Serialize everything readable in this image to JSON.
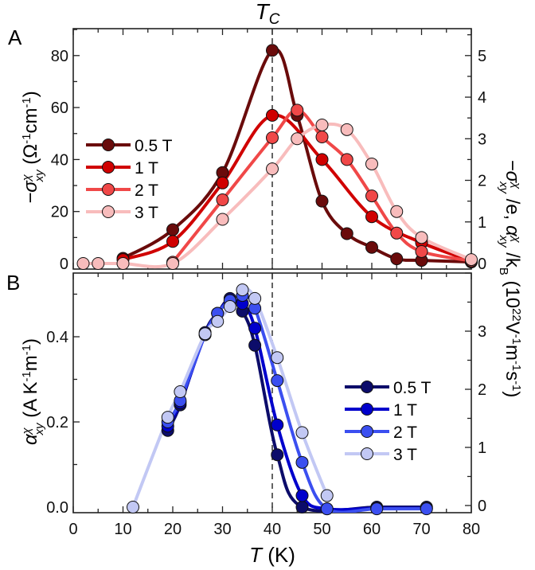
{
  "chart_data": [
    {
      "panel": "A",
      "type": "line",
      "panel_label": "A",
      "annotation": {
        "text": "T",
        "sub": "C",
        "x_value": 40
      },
      "xlabel": "T (K)",
      "xlim": [
        0,
        80
      ],
      "xticks": [
        0,
        10,
        20,
        30,
        40,
        50,
        60,
        70,
        80
      ],
      "ylim": [
        -2.1,
        90.3
      ],
      "yticks": [
        0,
        20,
        40,
        60,
        80
      ],
      "ylabel_segments": [
        {
          "t": "−σ",
          "s": "i"
        },
        {
          "t": "χ",
          "s": "sup i"
        },
        {
          "t": "xy",
          "s": "sub i stack"
        },
        {
          "t": " (Ω",
          "s": ""
        },
        {
          "t": "-1",
          "s": "sup"
        },
        {
          "t": "cm",
          "s": ""
        },
        {
          "t": "-1",
          "s": "sup"
        },
        {
          "t": ")",
          "s": ""
        }
      ],
      "right_axis": {
        "scale_factor": 16,
        "ticks": [
          0,
          1,
          2,
          3,
          4,
          5
        ]
      },
      "legend_position": "center-left",
      "series": [
        {
          "name": "0.5 T",
          "color": "#6a0b0b",
          "T": [
            10,
            20,
            30,
            40,
            45,
            50,
            55,
            60,
            65,
            70,
            80
          ],
          "values": [
            2,
            13,
            35,
            82,
            57,
            24,
            11.5,
            6.2,
            1.8,
            1.2,
            0.6
          ]
        },
        {
          "name": "1 T",
          "color": "#d00000",
          "T": [
            10,
            20,
            30,
            40,
            50,
            60,
            70,
            80
          ],
          "values": [
            1.5,
            8.5,
            31,
            57,
            40,
            18,
            8,
            1
          ]
        },
        {
          "name": "2 T",
          "color": "#f04848",
          "T": [
            20,
            30,
            40,
            45,
            50,
            55,
            60,
            65,
            70,
            80
          ],
          "values": [
            0.5,
            24.5,
            48.4,
            59,
            48.7,
            40,
            26,
            11.7,
            4.6,
            1
          ]
        },
        {
          "name": "3 T",
          "color": "#f8bcbc",
          "T": [
            2,
            5,
            10,
            20,
            30,
            40,
            45,
            50,
            55,
            60,
            65,
            70,
            80
          ],
          "values": [
            0,
            0,
            0,
            0,
            17,
            36.4,
            48,
            53.3,
            51.5,
            38.3,
            20,
            10,
            1.5
          ]
        }
      ]
    },
    {
      "panel": "B",
      "type": "line",
      "panel_label": "B",
      "xlabel": "T (K)",
      "xlim": [
        0,
        80
      ],
      "xticks": [
        0,
        10,
        20,
        30,
        40,
        50,
        60,
        70,
        80
      ],
      "ylim": [
        -0.013,
        0.55
      ],
      "yticks": [
        0.0,
        0.2,
        0.4
      ],
      "ytick_labels": [
        "0.0",
        "0.2",
        "0.4"
      ],
      "ylabel_segments": [
        {
          "t": "α",
          "s": "i"
        },
        {
          "t": "χ",
          "s": "sup i"
        },
        {
          "t": "xy",
          "s": "sub i stack"
        },
        {
          "t": " (A K",
          "s": ""
        },
        {
          "t": "-1",
          "s": "sup"
        },
        {
          "t": "m",
          "s": ""
        },
        {
          "t": "-1",
          "s": "sup"
        },
        {
          "t": ")",
          "s": ""
        }
      ],
      "right_axis": {
        "scale_factor": 0.1364,
        "ticks": [
          0,
          1,
          2,
          3
        ]
      },
      "legend_position": "center-right",
      "series": [
        {
          "name": "0.5 T",
          "color": "#0c0c6a",
          "T": [
            19,
            21.5,
            26.5,
            29,
            31.5,
            34,
            36.5,
            41,
            46,
            61,
            71
          ],
          "values": [
            0.18,
            0.24,
            0.41,
            0.455,
            0.49,
            0.46,
            0.38,
            0.123,
            0,
            0,
            0
          ]
        },
        {
          "name": "1 T",
          "color": "#0000cc",
          "T": [
            19,
            21.5,
            26.5,
            29,
            31.5,
            34,
            36.5,
            41,
            46,
            51,
            61,
            71
          ],
          "values": [
            0.19,
            0.245,
            0.405,
            0.455,
            0.485,
            0.478,
            0.42,
            0.193,
            0.027,
            -0.004,
            -0.003,
            -0.003
          ]
        },
        {
          "name": "2 T",
          "color": "#3b4ff0",
          "T": [
            19,
            21.5,
            26.5,
            29,
            31.5,
            34,
            36.5,
            41,
            46,
            51,
            61,
            71
          ],
          "values": [
            0.2,
            0.25,
            0.405,
            0.455,
            0.485,
            0.497,
            0.467,
            0.297,
            0.105,
            -0.004,
            -0.004,
            -0.004
          ]
        },
        {
          "name": "3 T",
          "color": "#c2c8f4",
          "T": [
            12,
            19,
            21.5,
            26.5,
            29,
            31.5,
            34,
            36.5,
            41,
            46,
            51
          ],
          "values": [
            0,
            0.211,
            0.271,
            0.407,
            0.436,
            0.471,
            0.51,
            0.49,
            0.351,
            0.175,
            0.027
          ]
        }
      ]
    }
  ],
  "xlabel_segments": [
    {
      "t": "T",
      "s": "i"
    },
    {
      "t": " (K)",
      "s": ""
    }
  ],
  "right_label_segments": [
    {
      "t": "−σ",
      "s": "i"
    },
    {
      "t": "χ",
      "s": "sup i"
    },
    {
      "t": "xy",
      "s": "sub i stack"
    },
    {
      "t": " /e, ",
      "s": ""
    },
    {
      "t": "α",
      "s": "i"
    },
    {
      "t": "χ",
      "s": "sup i"
    },
    {
      "t": "xy",
      "s": "sub i stack"
    },
    {
      "t": " /k",
      "s": ""
    },
    {
      "t": "B",
      "s": "sub"
    },
    {
      "t": " (10",
      "s": ""
    },
    {
      "t": "22",
      "s": "sup"
    },
    {
      "t": "V",
      "s": ""
    },
    {
      "t": "-1",
      "s": "sup"
    },
    {
      "t": "m",
      "s": ""
    },
    {
      "t": "-1",
      "s": "sup"
    },
    {
      "t": "s",
      "s": ""
    },
    {
      "t": "-1",
      "s": "sup"
    },
    {
      "t": ")",
      "s": ""
    }
  ]
}
